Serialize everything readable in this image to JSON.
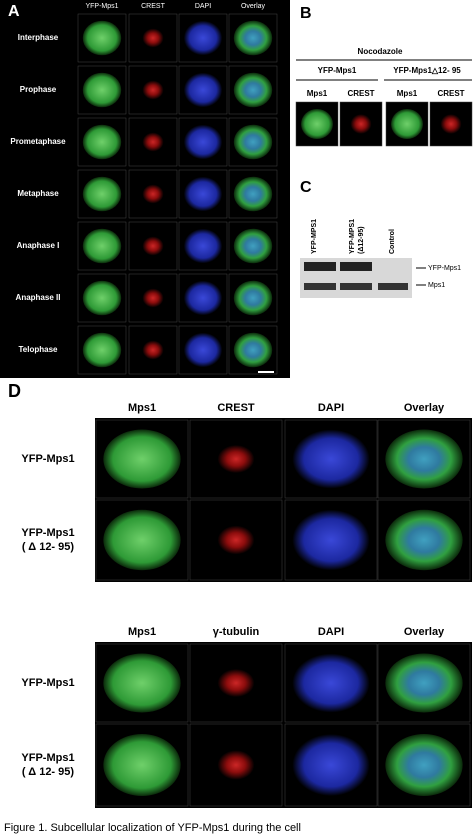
{
  "panel_a": {
    "label": "A",
    "columns": [
      "YFP-Mps1",
      "CREST",
      "DAPI",
      "Overlay"
    ],
    "rows": [
      "Interphase",
      "Prophase",
      "Prometaphase",
      "Metaphase",
      "Anaphase I",
      "Anaphase II",
      "Telophase"
    ]
  },
  "panel_b": {
    "label": "B",
    "treatment": "Nocodazole",
    "groups": [
      "YFP-Mps1",
      "YFP-Mps1△12- 95"
    ],
    "columns": [
      "Mps1",
      "CREST",
      "Mps1",
      "CREST"
    ]
  },
  "panel_c": {
    "label": "C",
    "lanes": [
      [
        "YFP-MPS1"
      ],
      [
        "YFP-MPS1",
        "(Δ12-95)"
      ],
      [
        "Control"
      ]
    ],
    "bands": [
      "YFP-Mps1",
      "Mps1"
    ]
  },
  "panel_d": {
    "label": "D",
    "top_columns": [
      "Mps1",
      "CREST",
      "DAPI",
      "Overlay"
    ],
    "bottom_columns": [
      "Mps1",
      "γ-tubulin",
      "DAPI",
      "Overlay"
    ],
    "rows": [
      [
        "YFP-Mps1"
      ],
      [
        "YFP-Mps1",
        "( Δ 12- 95)"
      ]
    ]
  },
  "caption": "Figure 1. Subcellular localization of YFP-Mps1 during the cell"
}
